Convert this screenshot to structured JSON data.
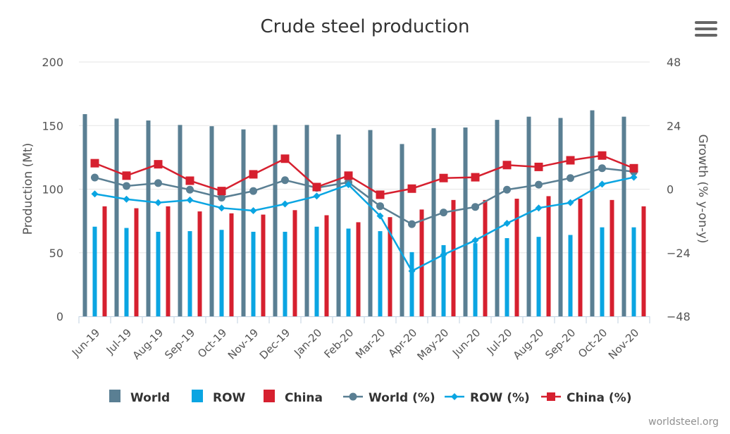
{
  "chart_data": {
    "type": "bar",
    "title": "Crude steel production",
    "ylabel": "Production (Mt)",
    "y2label": "Growth (% y-on-y)",
    "ylim": [
      0,
      200
    ],
    "y2lim": [
      -48,
      48
    ],
    "yticks": [
      "0",
      "50",
      "100",
      "150",
      "200"
    ],
    "y2ticks": [
      "−48",
      "−24",
      "0",
      "24",
      "48"
    ],
    "categories": [
      "Jun-19",
      "Jul-19",
      "Aug-19",
      "Sep-19",
      "Oct-19",
      "Nov-19",
      "Dec-19",
      "Jan-20",
      "Feb-20",
      "Mar-20",
      "Apr-20",
      "May-20",
      "Jun-20",
      "Jul-20",
      "Aug-20",
      "Sep-20",
      "Oct-20",
      "Nov-20"
    ],
    "series": [
      {
        "name": "World",
        "type": "bar",
        "axis": "left",
        "color": "#5a7f93",
        "values": [
          159,
          155.5,
          154,
          150.5,
          149.5,
          147,
          150.5,
          150.5,
          143,
          146.5,
          135.5,
          148,
          148.5,
          154.5,
          157,
          156,
          162,
          157
        ]
      },
      {
        "name": "ROW",
        "type": "bar",
        "axis": "left",
        "color": "#0aa5e2",
        "values": [
          70.5,
          69.5,
          66.5,
          67,
          68,
          66.5,
          66.5,
          70.5,
          69,
          67,
          50.5,
          56,
          57.5,
          61.5,
          62.5,
          64,
          70,
          70
        ]
      },
      {
        "name": "China",
        "type": "bar",
        "axis": "left",
        "color": "#d6202f",
        "values": [
          86.5,
          85,
          86.5,
          82.5,
          81,
          80,
          83.5,
          79.5,
          74,
          78,
          84,
          91.5,
          91.5,
          92.5,
          94.5,
          92.5,
          91.5,
          86.5
        ]
      },
      {
        "name": "World (%)",
        "type": "line",
        "axis": "right",
        "color": "#5a7f93",
        "marker": "circle",
        "values": [
          4.4,
          1.2,
          2.3,
          -0.2,
          -3.2,
          -0.7,
          3.4,
          0.5,
          2.6,
          -6.4,
          -13.2,
          -8.8,
          -6.7,
          -0.2,
          1.7,
          4.2,
          7.9,
          6.6
        ]
      },
      {
        "name": "ROW (%)",
        "type": "line",
        "axis": "right",
        "color": "#0aa5e2",
        "marker": "diamond",
        "values": [
          -1.8,
          -3.8,
          -5.1,
          -4.1,
          -7.1,
          -8.1,
          -5.6,
          -2.6,
          1.7,
          -10.1,
          -30.9,
          -24.7,
          -19.3,
          -12.9,
          -7.1,
          -5.1,
          1.9,
          4.5
        ]
      },
      {
        "name": "China (%)",
        "type": "line",
        "axis": "right",
        "color": "#d6202f",
        "marker": "square",
        "values": [
          9.8,
          5.1,
          9.4,
          3.2,
          -0.7,
          5.6,
          11.5,
          0.8,
          5.1,
          -2.1,
          0.2,
          4.2,
          4.5,
          9.1,
          8.4,
          10.9,
          12.7,
          7.9
        ]
      }
    ],
    "legend_position": "bottom",
    "grid": true
  },
  "menu": {
    "icon": "hamburger-menu-icon"
  },
  "credit": "worldsteel.org"
}
